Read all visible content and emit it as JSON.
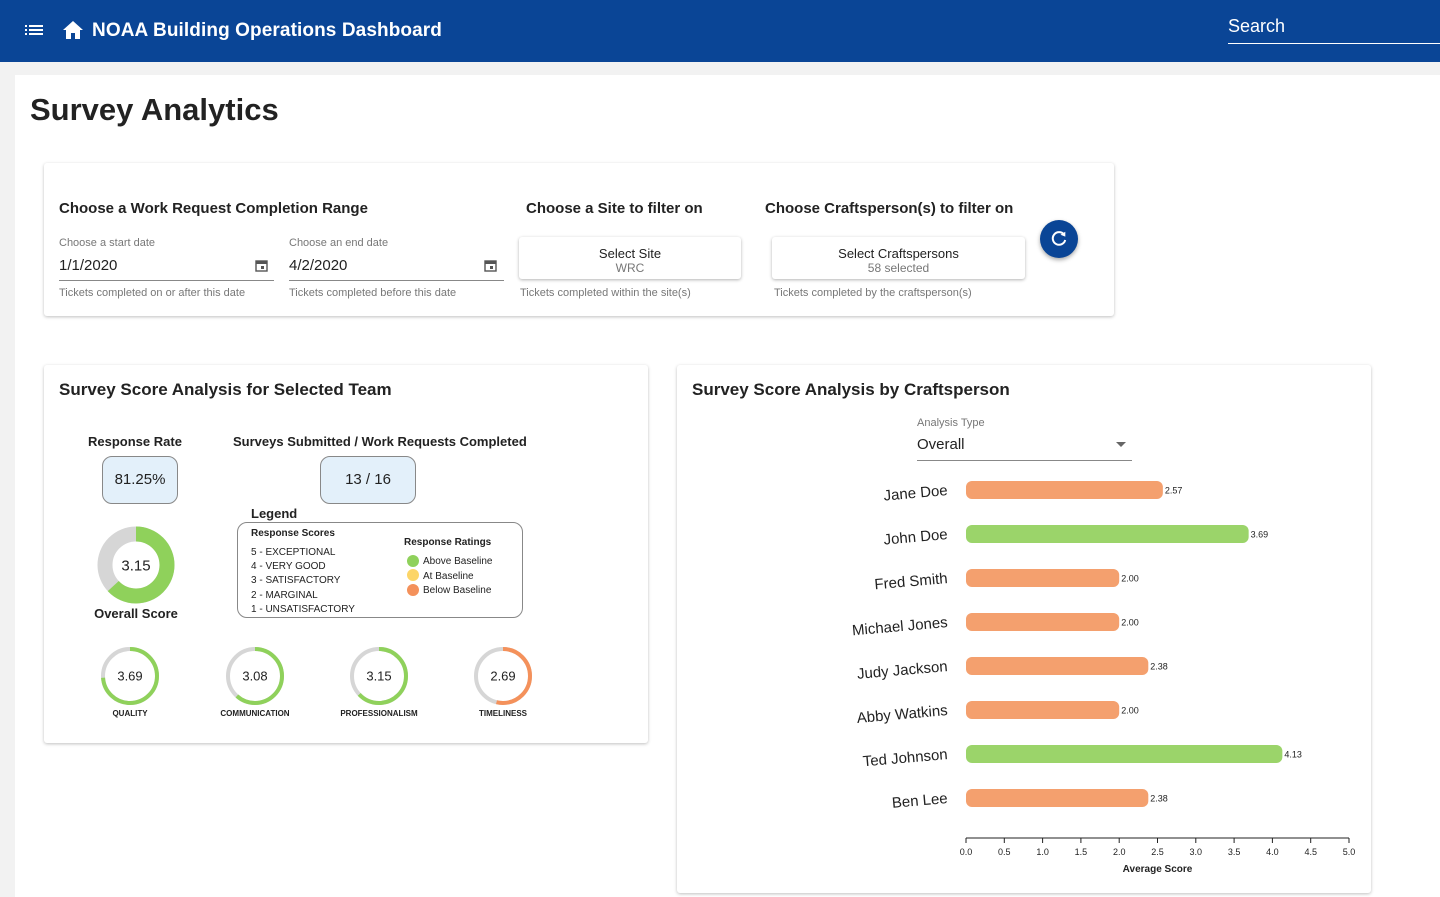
{
  "header": {
    "app_title": "NOAA Building Operations Dashboard",
    "search_placeholder": "Search",
    "menu_icon": "menu-icon",
    "home_icon": "home-icon"
  },
  "page_title": "Survey Analytics",
  "filters": {
    "date_range_title": "Choose a Work Request Completion Range",
    "start": {
      "label": "Choose a start date",
      "value": "1/1/2020",
      "helper": "Tickets completed on or after this date"
    },
    "end": {
      "label": "Choose an end date",
      "value": "4/2/2020",
      "helper": "Tickets completed before this date"
    },
    "site_title": "Choose a Site to filter on",
    "site_button": {
      "label": "Select Site",
      "value": "WRC"
    },
    "site_helper": "Tickets completed within the site(s)",
    "craft_title": "Choose Craftsperson(s) to filter on",
    "craft_button": {
      "label": "Select Craftspersons",
      "value": "58 selected"
    },
    "craft_helper": "Tickets completed by the craftsperson(s)",
    "refresh_icon": "refresh-icon"
  },
  "team": {
    "title": "Survey Score Analysis for Selected Team",
    "response_rate_label": "Response Rate",
    "response_rate_value": "81.25%",
    "submitted_label": "Surveys Submitted / Work Requests Completed",
    "submitted_value": "13 / 16",
    "overall": {
      "label": "Overall Score",
      "value": 3.15,
      "display": "3.15",
      "fraction": 0.63,
      "color": "#8fd15b"
    },
    "legend": {
      "title": "Legend",
      "scores_head": "Response Scores",
      "scores": [
        "5 - EXCEPTIONAL",
        "4 - VERY GOOD",
        "3 - SATISFACTORY",
        "2 - MARGINAL",
        "1 - UNSATISFACTORY"
      ],
      "ratings_head": "Response Ratings",
      "ratings": [
        {
          "label": "Above Baseline",
          "color": "#8fd15b"
        },
        {
          "label": "At Baseline",
          "color": "#fcd568"
        },
        {
          "label": "Below Baseline",
          "color": "#f4915b"
        }
      ]
    },
    "categories": [
      {
        "label": "QUALITY",
        "value": 3.69,
        "display": "3.69",
        "fraction": 0.738,
        "color": "#8fd15b"
      },
      {
        "label": "COMMUNICATION",
        "value": 3.08,
        "display": "3.08",
        "fraction": 0.616,
        "color": "#8fd15b"
      },
      {
        "label": "PROFESSIONALISM",
        "value": 3.15,
        "display": "3.15",
        "fraction": 0.63,
        "color": "#8fd15b"
      },
      {
        "label": "TIMELINESS",
        "value": 2.69,
        "display": "2.69",
        "fraction": 0.538,
        "color": "#f4915b"
      }
    ]
  },
  "craft": {
    "title": "Survey Score Analysis by Craftsperson",
    "analysis_type_label": "Analysis Type",
    "analysis_type_value": "Overall"
  },
  "chart_data": {
    "type": "bar",
    "orientation": "horizontal",
    "title": "",
    "xlabel": "Average Score",
    "ylabel": "",
    "xlim": [
      0,
      5
    ],
    "xticks": [
      "0.0",
      "0.5",
      "1.0",
      "1.5",
      "2.0",
      "2.5",
      "3.0",
      "3.5",
      "4.0",
      "4.5",
      "5.0"
    ],
    "categories": [
      "Jane Doe",
      "John Doe",
      "Fred Smith",
      "Michael Jones",
      "Judy Jackson",
      "Abby Watkins",
      "Ted Johnson",
      "Ben Lee"
    ],
    "values": [
      2.57,
      3.69,
      2.0,
      2.0,
      2.38,
      2.0,
      4.13,
      2.38
    ],
    "value_labels": [
      "2.57",
      "3.69",
      "2.00",
      "2.00",
      "2.38",
      "2.00",
      "4.13",
      "2.38"
    ],
    "colors": [
      "#f4a06e",
      "#9bd46a",
      "#f4a06e",
      "#f4a06e",
      "#f4a06e",
      "#f4a06e",
      "#9bd46a",
      "#f4a06e"
    ],
    "grid": false,
    "legend": "none"
  }
}
